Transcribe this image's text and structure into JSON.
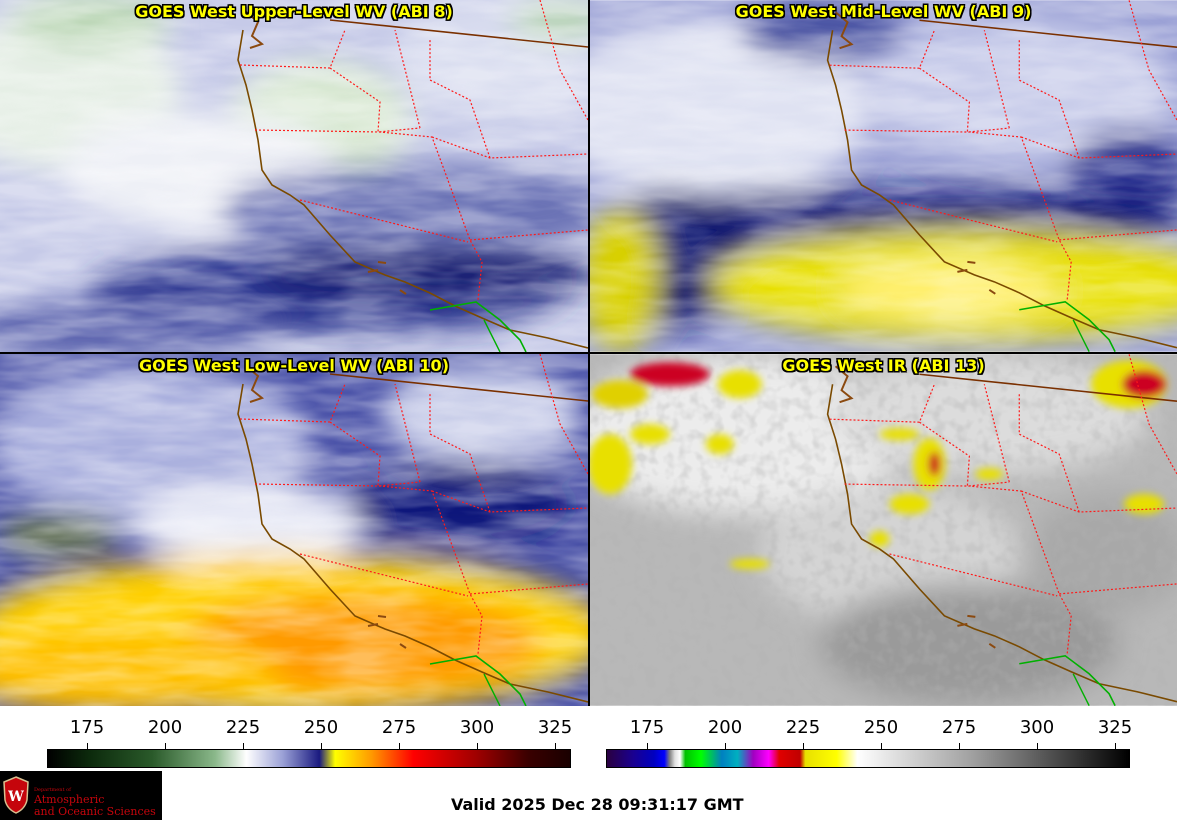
{
  "panels": [
    {
      "id": "upper",
      "title": "GOES West Upper-Level WV (ABI 8)"
    },
    {
      "id": "mid",
      "title": "GOES West Mid-Level WV (ABI 9)"
    },
    {
      "id": "low",
      "title": "GOES West Low-Level WV (ABI 10)"
    },
    {
      "id": "ir",
      "title": "GOES West IR (ABI 13)"
    }
  ],
  "colorbars": {
    "wv": {
      "ticks": [
        "175",
        "200",
        "225",
        "250",
        "275",
        "300",
        "325"
      ]
    },
    "ir": {
      "ticks": [
        "175",
        "200",
        "225",
        "250",
        "275",
        "300",
        "325"
      ]
    }
  },
  "logo": {
    "line1": "Department of",
    "line2": "Atmospheric",
    "line3": "and Oceanic Sciences"
  },
  "valid_time": "Valid 2025 Dec 28 09:31:17 GMT",
  "colors": {
    "title": "#ffff00",
    "coast": "#7a4a00",
    "state": "#ff0000",
    "mexico": "#00a000",
    "logo_red": "#c5050c"
  }
}
